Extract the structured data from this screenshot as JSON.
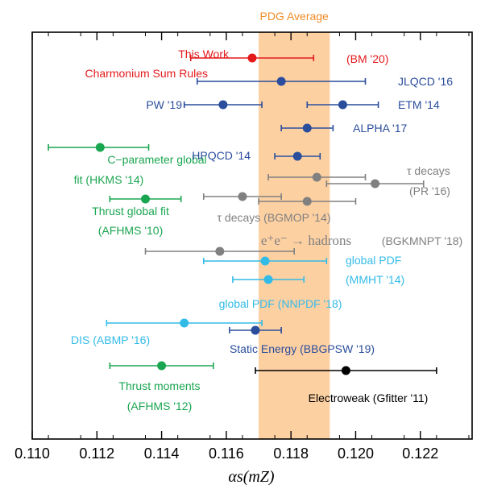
{
  "chart_data": {
    "type": "scatter",
    "title": "",
    "xlabel": "αs(mZ)",
    "xlim": [
      0.11,
      0.1236
    ],
    "xticks": [
      "0.110",
      "0.112",
      "0.114",
      "0.116",
      "0.118",
      "0.120",
      "0.122"
    ],
    "band": {
      "label": "PDG Average",
      "lo": 0.117,
      "hi": 0.1192,
      "color": "#fdd0a2",
      "label_color": "#f28c28"
    },
    "colors": {
      "red": "#e31a1c",
      "blue": "#2a4d9c",
      "green": "#1aa650",
      "gray": "#808080",
      "cyan": "#33bbe8",
      "black": "#000000"
    },
    "points": [
      {
        "id": "this-work",
        "value": 0.1168,
        "lo": 0.1149,
        "hi": 0.1187,
        "color": "red"
      },
      {
        "id": "jlqcd-16",
        "value": 0.1177,
        "lo": 0.1151,
        "hi": 0.1203,
        "color": "blue"
      },
      {
        "id": "pw-19",
        "value": 0.1159,
        "lo": 0.1147,
        "hi": 0.1171,
        "color": "blue"
      },
      {
        "id": "etm-14",
        "value": 0.1196,
        "lo": 0.1185,
        "hi": 0.1207,
        "color": "blue"
      },
      {
        "id": "alpha-17",
        "value": 0.1185,
        "lo": 0.1177,
        "hi": 0.1193,
        "color": "blue"
      },
      {
        "id": "c-param",
        "value": 0.1121,
        "lo": 0.1105,
        "hi": 0.1136,
        "color": "green"
      },
      {
        "id": "hpqcd-14",
        "value": 0.1182,
        "lo": 0.1175,
        "hi": 0.1189,
        "color": "blue"
      },
      {
        "id": "tau-a",
        "value": 0.1188,
        "lo": 0.1173,
        "hi": 0.1203,
        "color": "gray"
      },
      {
        "id": "tau-b",
        "value": 0.1206,
        "lo": 0.1191,
        "hi": 0.1221,
        "color": "gray"
      },
      {
        "id": "thrust-fit",
        "value": 0.1135,
        "lo": 0.1124,
        "hi": 0.1146,
        "color": "green"
      },
      {
        "id": "tau-c",
        "value": 0.1165,
        "lo": 0.1153,
        "hi": 0.1177,
        "color": "gray"
      },
      {
        "id": "tau-d",
        "value": 0.1185,
        "lo": 0.117,
        "hi": 0.12,
        "color": "gray"
      },
      {
        "id": "ee-hadrons",
        "value": 0.1158,
        "lo": 0.1135,
        "hi": 0.1181,
        "color": "gray"
      },
      {
        "id": "mmht-a",
        "value": 0.1172,
        "lo": 0.1153,
        "hi": 0.1191,
        "color": "cyan"
      },
      {
        "id": "mmht-b",
        "value": 0.1173,
        "lo": 0.1162,
        "hi": 0.1184,
        "color": "cyan"
      },
      {
        "id": "abmp-16",
        "value": 0.1147,
        "lo": 0.1123,
        "hi": 0.1171,
        "color": "cyan"
      },
      {
        "id": "bbgpsw-19",
        "value": 0.1169,
        "lo": 0.1161,
        "hi": 0.1177,
        "color": "blue"
      },
      {
        "id": "thrust-moments",
        "value": 0.114,
        "lo": 0.1124,
        "hi": 0.1156,
        "color": "green"
      },
      {
        "id": "electroweak",
        "value": 0.1197,
        "lo": 0.1169,
        "hi": 0.1225,
        "color": "black"
      }
    ],
    "labels": [
      {
        "id": "this-work",
        "text": "This Work",
        "color": "red"
      },
      {
        "id": "charmonium",
        "text": "Charmonium Sum Rules",
        "color": "red"
      },
      {
        "id": "bm-20",
        "text": "(BM '20)",
        "color": "red"
      },
      {
        "id": "jlqcd",
        "text": "JLQCD '16",
        "color": "blue"
      },
      {
        "id": "pw",
        "text": "PW '19",
        "color": "blue"
      },
      {
        "id": "etm",
        "text": "ETM '14",
        "color": "blue"
      },
      {
        "id": "alpha",
        "text": "ALPHA '17",
        "color": "blue"
      },
      {
        "id": "cparam1",
        "text": "C−parameter global",
        "color": "green"
      },
      {
        "id": "cparam2",
        "text": "fit (HKMS '14)",
        "color": "green"
      },
      {
        "id": "hpqcd",
        "text": "HPQCD '14",
        "color": "blue"
      },
      {
        "id": "taudecay1",
        "text": "τ decays",
        "color": "gray"
      },
      {
        "id": "pr16",
        "text": "(PR '16)",
        "color": "gray"
      },
      {
        "id": "thrust1",
        "text": "Thrust global fit",
        "color": "green"
      },
      {
        "id": "thrust2",
        "text": "(AFHMS '10)",
        "color": "green"
      },
      {
        "id": "taudecay2",
        "text": "τ decays (BGMOP '14)",
        "color": "gray"
      },
      {
        "id": "ee",
        "text": "e⁺e⁻ → hadrons",
        "color": "gray"
      },
      {
        "id": "bgkmnpt",
        "text": "(BGKMNPT '18)",
        "color": "gray"
      },
      {
        "id": "gpdf1",
        "text": "global PDF",
        "color": "cyan"
      },
      {
        "id": "mmht",
        "text": "(MMHT '14)",
        "color": "cyan"
      },
      {
        "id": "nnpdf",
        "text": "global PDF (NNPDF '18)",
        "color": "cyan"
      },
      {
        "id": "dis",
        "text": "DIS (ABMP '16)",
        "color": "cyan"
      },
      {
        "id": "static",
        "text": "Static Energy (BBGPSW '19)",
        "color": "blue"
      },
      {
        "id": "tm1",
        "text": "Thrust moments",
        "color": "green"
      },
      {
        "id": "tm2",
        "text": "(AFHMS '12)",
        "color": "green"
      },
      {
        "id": "ew",
        "text": "Electroweak (Gfitter '11)",
        "color": "black"
      }
    ]
  }
}
